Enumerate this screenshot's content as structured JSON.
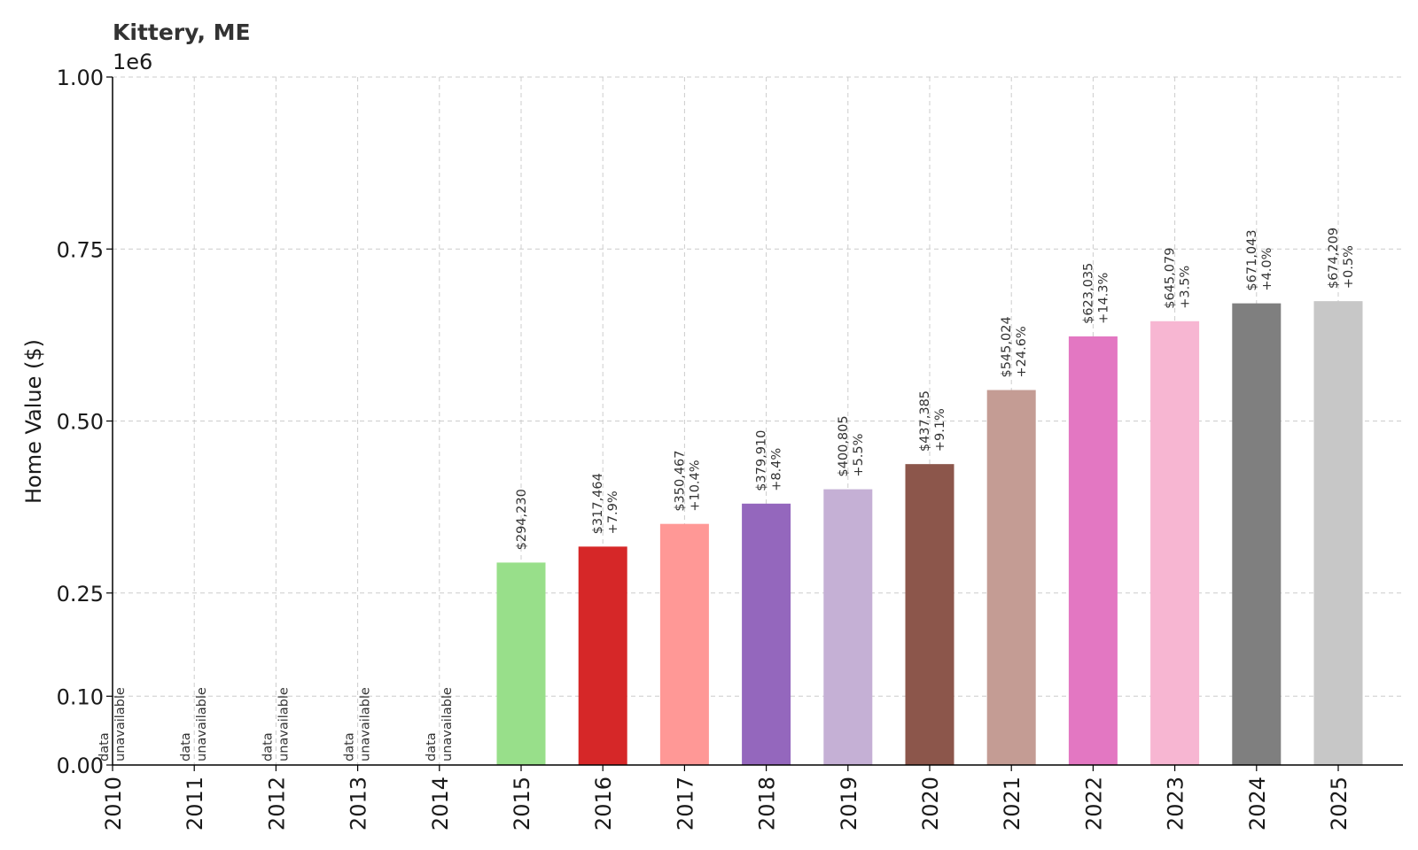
{
  "chart_data": {
    "type": "bar",
    "title": "Kittery, ME",
    "xlabel": "",
    "ylabel": "Home Value ($)",
    "y_offset_label": "1e6",
    "ylim": [
      0,
      1000000
    ],
    "yticks": [
      0,
      100000,
      250000,
      500000,
      750000,
      1000000
    ],
    "ytick_labels": [
      "0.00",
      "0.10",
      "0.25",
      "0.50",
      "0.75",
      "1.00"
    ],
    "grid": true,
    "categories": [
      "2010",
      "2011",
      "2012",
      "2013",
      "2014",
      "2015",
      "2016",
      "2017",
      "2018",
      "2019",
      "2020",
      "2021",
      "2022",
      "2023",
      "2024",
      "2025"
    ],
    "values": [
      null,
      null,
      null,
      null,
      null,
      294230,
      317464,
      350467,
      379910,
      400805,
      437385,
      545024,
      623035,
      645079,
      671043,
      674209
    ],
    "value_labels": [
      "",
      "",
      "",
      "",
      "",
      "$294,230",
      "$317,464",
      "$350,467",
      "$379,910",
      "$400,805",
      "$437,385",
      "$545,024",
      "$623,035",
      "$645,079",
      "$671,043",
      "$674,209"
    ],
    "change_labels": [
      "",
      "",
      "",
      "",
      "",
      "",
      "+7.9%",
      "+10.4%",
      "+8.4%",
      "+5.5%",
      "+9.1%",
      "+24.6%",
      "+14.3%",
      "+3.5%",
      "+4.0%",
      "+0.5%"
    ],
    "unavailable_label": [
      "data",
      "unavailable"
    ],
    "colors": [
      "#1f77b4",
      "#ff7f0e",
      "#2ca02c",
      "#d62728",
      "#9467bd",
      "#98df8a",
      "#d62728",
      "#ff9896",
      "#9467bd",
      "#c5b0d5",
      "#8c564b",
      "#c49c94",
      "#e377c2",
      "#f7b6d2",
      "#7f7f7f",
      "#c7c7c7"
    ]
  }
}
